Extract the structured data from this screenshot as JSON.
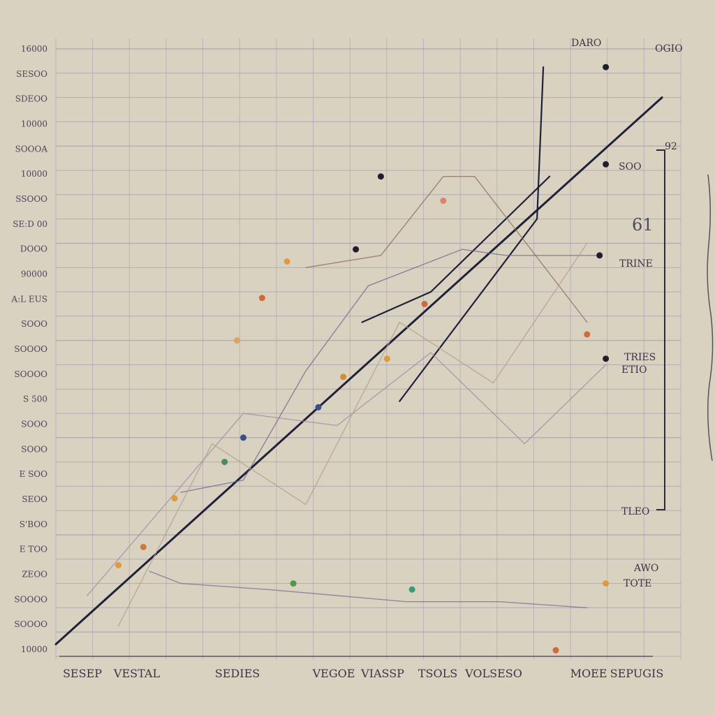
{
  "chart_data": {
    "type": "line",
    "title": "",
    "xlabel": "",
    "ylabel": "",
    "grid": true,
    "legend": "none",
    "xlim": [
      0,
      100
    ],
    "ylim": [
      0,
      100
    ],
    "y_tick_labels": [
      "16000",
      "SESOO",
      "SDEOO",
      "10000",
      "SOOOA",
      "10000",
      "SSOOO",
      "SE:D 00",
      "DOOO",
      "90000",
      "A:L EUS",
      "SOOO",
      "SOOOO",
      "SOOOO",
      "S 500",
      "SOOO",
      "SOOO",
      "E SOO",
      "SEOO",
      "S'BOO",
      "E TOO",
      "ZEOO",
      "SOOOO",
      "SOOOO",
      "10000"
    ],
    "x_tick_labels": [
      "SESEP",
      "VESTAL",
      "SEDIES",
      "VEGOE",
      "VIASSP",
      "TSOLS",
      "VOLSESO",
      "MOEE",
      "SEPUGIS"
    ],
    "annotations": {
      "top_right": "DARO",
      "far_right": "OGIO",
      "mid_label": "SOO",
      "big_number": "61",
      "series_note_1": "TRINE",
      "series_note_2": "TRIES",
      "series_note_3": "ETIO",
      "series_note_4": "TLEO",
      "series_note_5": "AWO",
      "series_note_6": "TOTE",
      "bracket_value": "92"
    },
    "series": [
      {
        "color": "#20203a",
        "x": [
          0,
          97
        ],
        "y": [
          2,
          92
        ]
      },
      {
        "color": "#20203a",
        "x": [
          55,
          77,
          78
        ],
        "y": [
          42,
          72,
          97
        ]
      },
      {
        "color": "#20203a",
        "x": [
          49,
          60,
          79
        ],
        "y": [
          55,
          60,
          79
        ]
      },
      {
        "color": "#8a6a5a",
        "x": [
          40,
          52,
          62,
          67,
          85
        ],
        "y": [
          64,
          66,
          79,
          79,
          55
        ]
      },
      {
        "color": "#6d6a8a",
        "x": [
          20,
          30,
          40,
          50,
          65,
          72,
          87
        ],
        "y": [
          27,
          29,
          47,
          61,
          67,
          66,
          66
        ]
      },
      {
        "color": "#7a6f8e",
        "x": [
          15,
          20,
          34,
          45,
          56,
          71,
          85
        ],
        "y": [
          14,
          12,
          11,
          10,
          9,
          9,
          8
        ]
      },
      {
        "color": "#9a8da2",
        "x": [
          5,
          15,
          30,
          45,
          60,
          75,
          88
        ],
        "y": [
          10,
          22,
          40,
          38,
          50,
          35,
          48
        ]
      },
      {
        "color": "#b59c8c",
        "x": [
          10,
          25,
          40,
          55,
          70,
          85
        ],
        "y": [
          5,
          35,
          25,
          55,
          45,
          68
        ]
      }
    ],
    "markers": [
      {
        "x": 52,
        "y": 79,
        "color": "#1e1e30"
      },
      {
        "x": 48,
        "y": 67,
        "color": "#1e1e30"
      },
      {
        "x": 37,
        "y": 65,
        "color": "#e09a3c"
      },
      {
        "x": 33,
        "y": 59,
        "color": "#d06a3a"
      },
      {
        "x": 29,
        "y": 52,
        "color": "#e0a060"
      },
      {
        "x": 53,
        "y": 49,
        "color": "#e09a3c"
      },
      {
        "x": 46,
        "y": 46,
        "color": "#d09030"
      },
      {
        "x": 42,
        "y": 41,
        "color": "#3a4f8a"
      },
      {
        "x": 30,
        "y": 36,
        "color": "#3a4f8a"
      },
      {
        "x": 27,
        "y": 32,
        "color": "#4a8a6a"
      },
      {
        "x": 19,
        "y": 26,
        "color": "#e09a3c"
      },
      {
        "x": 14,
        "y": 18,
        "color": "#d07a3a"
      },
      {
        "x": 10,
        "y": 15,
        "color": "#e09a3c"
      },
      {
        "x": 62,
        "y": 75,
        "color": "#e08070"
      },
      {
        "x": 59,
        "y": 58,
        "color": "#d06a3a"
      },
      {
        "x": 87,
        "y": 66,
        "color": "#1e1e30"
      },
      {
        "x": 85,
        "y": 53,
        "color": "#d06a3a"
      },
      {
        "x": 88,
        "y": 49,
        "color": "#1e1e30"
      },
      {
        "x": 38,
        "y": 12,
        "color": "#4a9a4a"
      },
      {
        "x": 57,
        "y": 11,
        "color": "#3a9a7a"
      },
      {
        "x": 88,
        "y": 12,
        "color": "#e09a3c"
      },
      {
        "x": 80,
        "y": 1,
        "color": "#d06a3a"
      },
      {
        "x": 88,
        "y": 97,
        "color": "#1e1e30"
      },
      {
        "x": 88,
        "y": 81,
        "color": "#1e1e30"
      }
    ]
  }
}
